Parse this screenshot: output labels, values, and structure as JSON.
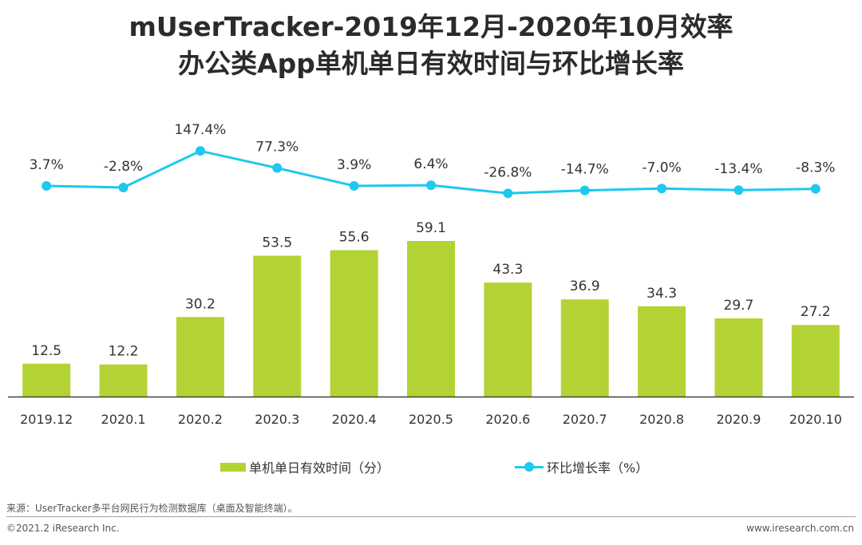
{
  "titles": {
    "line1": "mUserTracker-2019年12月-2020年10月效率",
    "line2": "办公类App单机单日有效时间与环比增长率"
  },
  "colors": {
    "bar": "#b3d335",
    "line": "#1ec8ef",
    "axis": "#404040"
  },
  "chart_data": {
    "type": "bar+line",
    "categories": [
      "2019.12",
      "2020.1",
      "2020.2",
      "2020.3",
      "2020.4",
      "2020.5",
      "2020.6",
      "2020.7",
      "2020.8",
      "2020.9",
      "2020.10"
    ],
    "series": [
      {
        "name": "单机单日有效时间（分）",
        "type": "bar",
        "values": [
          12.5,
          12.2,
          30.2,
          53.5,
          55.6,
          59.1,
          43.3,
          36.9,
          34.3,
          29.7,
          27.2
        ],
        "labels": [
          "12.5",
          "12.2",
          "30.2",
          "53.5",
          "55.6",
          "59.1",
          "43.3",
          "36.9",
          "34.3",
          "29.7",
          "27.2"
        ]
      },
      {
        "name": "环比增长率（%）",
        "type": "line",
        "values": [
          3.7,
          -2.8,
          147.4,
          77.3,
          3.9,
          6.4,
          -26.8,
          -14.7,
          -7.0,
          -13.4,
          -8.3
        ],
        "labels": [
          "3.7%",
          "-2.8%",
          "147.4%",
          "77.3%",
          "3.9%",
          "6.4%",
          "-26.8%",
          "-14.7%",
          "-7.0%",
          "-13.4%",
          "-8.3%"
        ]
      }
    ],
    "bar_axis_range": [
      0,
      66
    ],
    "line_axis_range": [
      -100,
      400
    ],
    "grid": false,
    "legend": "bottom"
  },
  "legend": {
    "bar_label": "单机单日有效时间（分）",
    "line_label": "环比增长率（%）"
  },
  "footer": {
    "source": "来源：UserTracker多平台网民行为检测数据库（桌面及智能终端）。",
    "copyright": "©2021.2 iResearch Inc.",
    "website": "www.iresearch.com.cn"
  }
}
